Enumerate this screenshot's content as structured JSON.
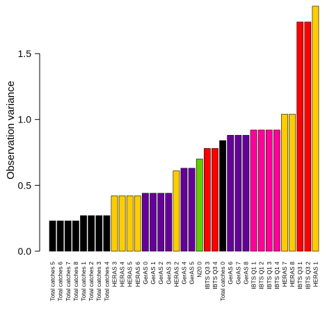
{
  "chart_data": {
    "type": "bar",
    "title": "",
    "xlabel": "",
    "ylabel": "Observation variance",
    "ylim": [
      0,
      1.87
    ],
    "yticks": [
      0.0,
      0.5,
      1.0,
      1.5
    ],
    "ytick_labels": [
      "0.0",
      "0.5",
      "1.0",
      "1.5"
    ],
    "grid": false,
    "legend": "none",
    "categories": [
      "Total catches 5",
      "Total catches 6",
      "Total catches 7",
      "Total catches 8",
      "Total catches 1",
      "Total catches 2",
      "Total catches 3",
      "Total catches 4",
      "HERAS 3",
      "HERAS 4",
      "HERAS 5",
      "HERAS 6",
      "GerAS 0",
      "GerAS 1",
      "GerAS 2",
      "GerAS 3",
      "HERAS 2",
      "GerAS 4",
      "GerAS 5",
      "N20 0",
      "IBTS Q3 3",
      "IBTS Q3 4",
      "Total catches 0",
      "GerAS 6",
      "GerAS 7",
      "GerAS 8",
      "IBTS Q1 1",
      "IBTS Q1 2",
      "IBTS Q1 3",
      "IBTS Q1 4",
      "HERAS 7",
      "HERAS 8",
      "IBTS Q3 1",
      "IBTS Q3 2",
      "HERAS 1"
    ],
    "values": [
      0.23,
      0.23,
      0.23,
      0.23,
      0.27,
      0.27,
      0.27,
      0.27,
      0.42,
      0.42,
      0.42,
      0.42,
      0.44,
      0.44,
      0.44,
      0.44,
      0.61,
      0.63,
      0.63,
      0.7,
      0.78,
      0.78,
      0.84,
      0.88,
      0.88,
      0.88,
      0.92,
      0.92,
      0.92,
      0.92,
      1.04,
      1.04,
      1.74,
      1.74,
      1.86
    ],
    "colors": [
      "#000000",
      "#000000",
      "#000000",
      "#000000",
      "#000000",
      "#000000",
      "#000000",
      "#000000",
      "#FFCC00",
      "#FFCC00",
      "#FFCC00",
      "#FFCC00",
      "#660099",
      "#660099",
      "#660099",
      "#660099",
      "#FFCC00",
      "#660099",
      "#660099",
      "#66CC00",
      "#FF0000",
      "#FF0000",
      "#000000",
      "#660099",
      "#660099",
      "#660099",
      "#FF0099",
      "#FF0099",
      "#FF0099",
      "#FF0099",
      "#FFCC00",
      "#FFCC00",
      "#FF0000",
      "#FF0000",
      "#FFCC00"
    ]
  }
}
